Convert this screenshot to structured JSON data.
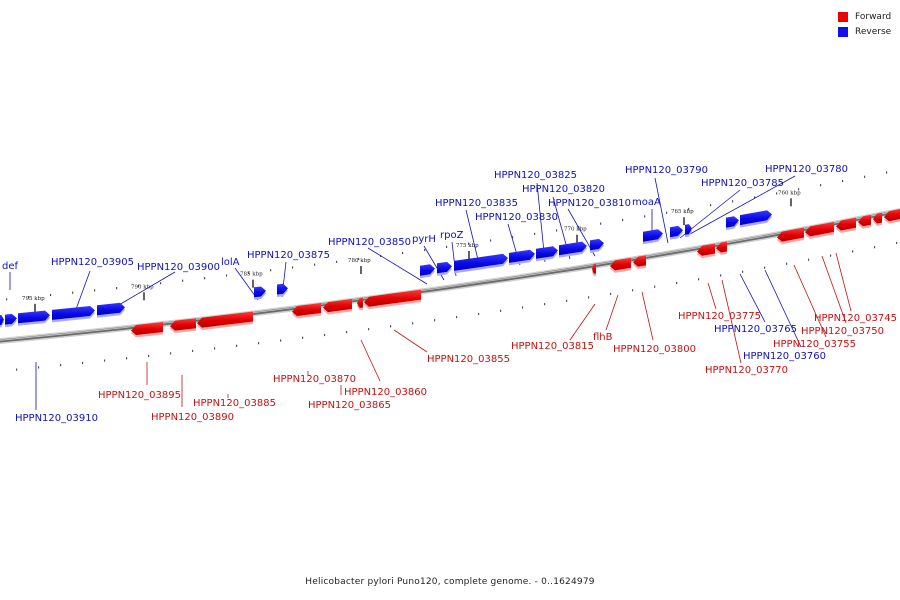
{
  "legend": {
    "forward_label": "Forward",
    "reverse_label": "Reverse",
    "forward_color": "#ee0000",
    "reverse_color": "#1010ee"
  },
  "caption": "Helicobacter pylori Puno120, complete genome. - 0..1624979",
  "ticks": [
    "795 kbp",
    "790 kbp",
    "785 kbp",
    "780 kbp",
    "775 kbp",
    "770 kbp",
    "765 kbp",
    "760 kbp"
  ],
  "genes": [
    {
      "label": "def",
      "strand": "reverse"
    },
    {
      "label": "HPPN120_03910",
      "strand": "reverse"
    },
    {
      "label": "HPPN120_03905",
      "strand": "reverse"
    },
    {
      "label": "HPPN120_03900",
      "strand": "reverse"
    },
    {
      "label": "HPPN120_03895",
      "strand": "forward"
    },
    {
      "label": "HPPN120_03890",
      "strand": "forward"
    },
    {
      "label": "HPPN120_03885",
      "strand": "forward"
    },
    {
      "label": "lolA",
      "strand": "reverse"
    },
    {
      "label": "HPPN120_03875",
      "strand": "reverse"
    },
    {
      "label": "HPPN120_03870",
      "strand": "forward"
    },
    {
      "label": "HPPN120_03865",
      "strand": "forward"
    },
    {
      "label": "HPPN120_03860",
      "strand": "forward"
    },
    {
      "label": "HPPN120_03855",
      "strand": "forward"
    },
    {
      "label": "HPPN120_03850",
      "strand": "reverse"
    },
    {
      "label": "pyrH",
      "strand": "reverse"
    },
    {
      "label": "rpoZ",
      "strand": "reverse"
    },
    {
      "label": "HPPN120_03835",
      "strand": "reverse"
    },
    {
      "label": "HPPN120_03830",
      "strand": "reverse"
    },
    {
      "label": "HPPN120_03825",
      "strand": "reverse"
    },
    {
      "label": "HPPN120_03820",
      "strand": "reverse"
    },
    {
      "label": "HPPN120_03815",
      "strand": "forward"
    },
    {
      "label": "HPPN120_03810",
      "strand": "reverse"
    },
    {
      "label": "flhB",
      "strand": "forward"
    },
    {
      "label": "HPPN120_03800",
      "strand": "forward"
    },
    {
      "label": "moaA",
      "strand": "reverse"
    },
    {
      "label": "HPPN120_03790",
      "strand": "reverse"
    },
    {
      "label": "HPPN120_03785",
      "strand": "reverse"
    },
    {
      "label": "HPPN120_03780",
      "strand": "reverse"
    },
    {
      "label": "HPPN120_03775",
      "strand": "forward"
    },
    {
      "label": "HPPN120_03770",
      "strand": "forward"
    },
    {
      "label": "HPPN120_03765",
      "strand": "reverse"
    },
    {
      "label": "HPPN120_03760",
      "strand": "reverse"
    },
    {
      "label": "HPPN120_03755",
      "strand": "forward"
    },
    {
      "label": "HPPN120_03750",
      "strand": "forward"
    },
    {
      "label": "HPPN120_03745",
      "strand": "forward"
    }
  ]
}
